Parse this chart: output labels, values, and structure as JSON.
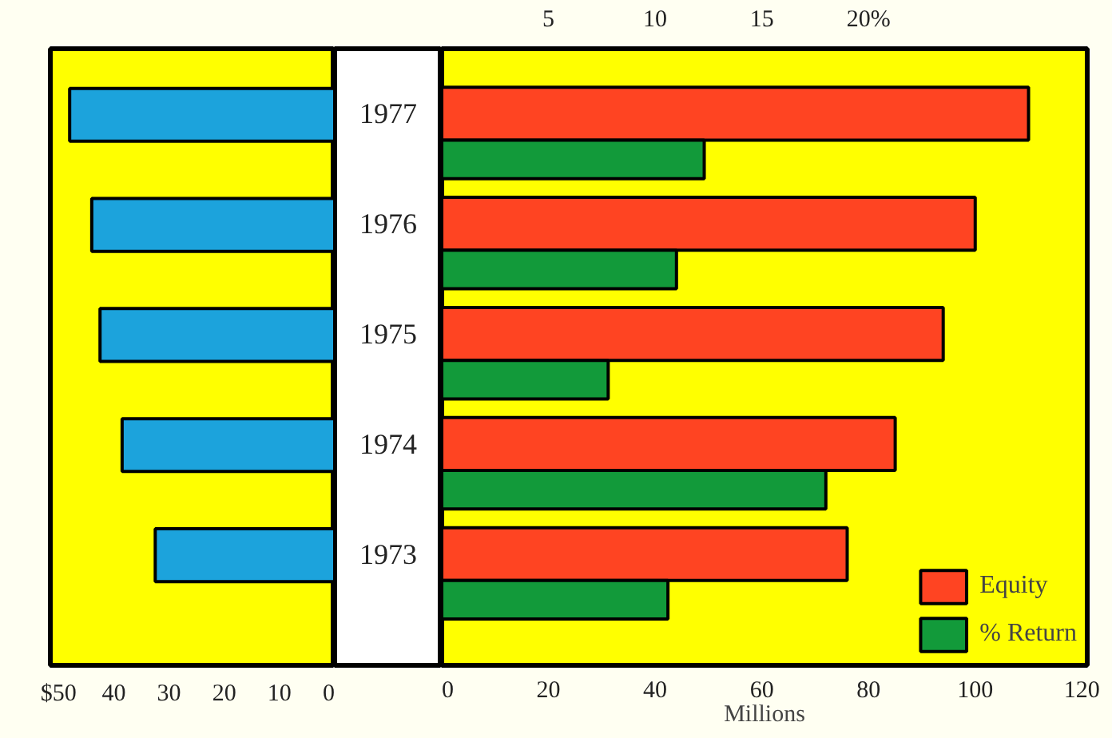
{
  "chart_data": [
    {
      "type": "bar",
      "orientation": "horizontal",
      "categories": [
        "1977",
        "1976",
        "1975",
        "1974",
        "1973"
      ],
      "series": [
        {
          "color": "#1ca3dc",
          "values": [
            48,
            44,
            42.5,
            38.5,
            32.5
          ]
        }
      ],
      "xlim": [
        51.5,
        0
      ],
      "xticks": [
        {
          "value": 50,
          "label": "$50"
        },
        40,
        30,
        20,
        10,
        0
      ],
      "grid": false
    },
    {
      "type": "bar",
      "orientation": "horizontal",
      "categories": [
        "1977",
        "1976",
        "1975",
        "1974",
        "1973"
      ],
      "tick_labels": "x",
      "series": [
        {
          "name": "Equity",
          "color": "#ff4422",
          "values": [
            110,
            100,
            94,
            85,
            76
          ]
        },
        {
          "name": "% Return",
          "color": "#129a3a",
          "axis": "x2",
          "values": [
            12.3,
            11,
            7.8,
            18,
            10.6
          ]
        }
      ],
      "xlabel": "Millions",
      "xlim": [
        0,
        121
      ],
      "xticks": [
        0,
        20,
        40,
        60,
        80,
        100,
        120
      ],
      "x2lim": [
        0,
        30.25
      ],
      "x2ticks": [
        5,
        10,
        15,
        {
          "value": 20,
          "label": "20%"
        }
      ],
      "legend": "bottom right",
      "grid": false
    }
  ]
}
